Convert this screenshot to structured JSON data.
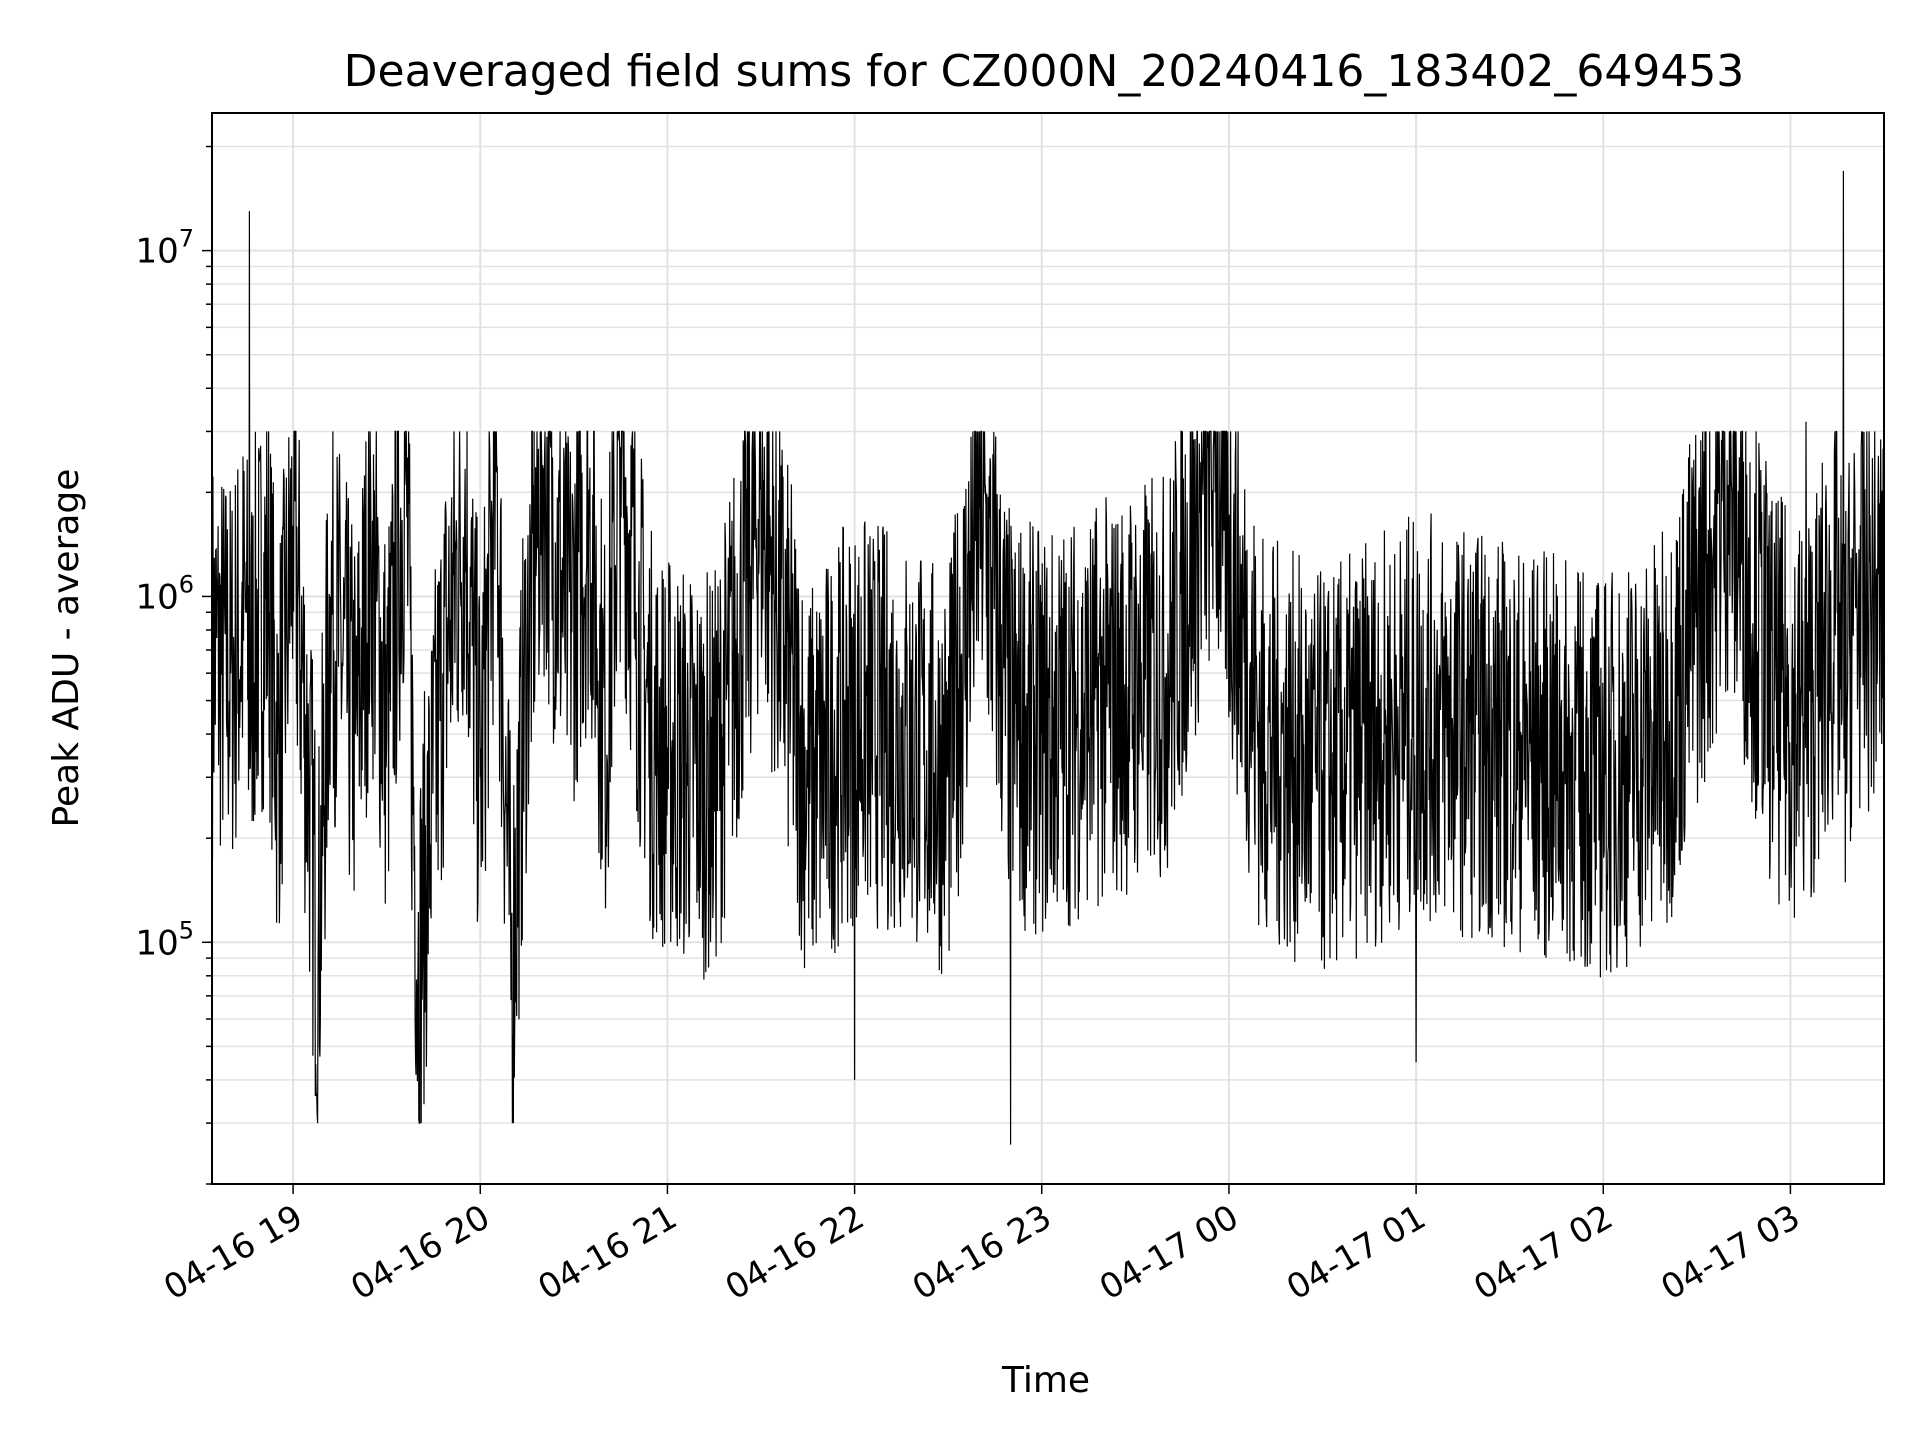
{
  "chart_data": {
    "type": "line",
    "title": "Deaveraged field sums for CZ000N_20240416_183402_649453",
    "xlabel": "Time",
    "ylabel": "Peak ADU - average",
    "yscale": "log",
    "ylim": [
      20000,
      25000000
    ],
    "xlim": [
      "2024-04-16 18:34:00",
      "2024-04-17 03:30:00"
    ],
    "x_ticks": [
      "04-16 19",
      "04-16 20",
      "04-16 21",
      "04-16 22",
      "04-16 23",
      "04-17 00",
      "04-17 01",
      "04-17 02",
      "04-17 03"
    ],
    "y_ticks": [
      {
        "base": "10",
        "exp": "5",
        "value": 100000
      },
      {
        "base": "10",
        "exp": "6",
        "value": 1000000
      },
      {
        "base": "10",
        "exp": "7",
        "value": 10000000
      }
    ],
    "grid": true,
    "line_color": "#000000",
    "series": [
      {
        "points": [
          [
            "2024-04-16 18:34",
            700000
          ],
          [
            "2024-04-16 18:40",
            600000
          ],
          [
            "2024-04-16 18:45",
            900000
          ],
          [
            "2024-04-16 18:46",
            13000000
          ],
          [
            "2024-04-16 18:47",
            700000
          ],
          [
            "2024-04-16 18:52",
            1100000
          ],
          [
            "2024-04-16 18:55",
            350000
          ],
          [
            "2024-04-16 18:58",
            800000
          ],
          [
            "2024-04-16 19:00",
            1600000
          ],
          [
            "2024-04-16 19:05",
            300000
          ],
          [
            "2024-04-16 19:08",
            90000
          ],
          [
            "2024-04-16 19:12",
            1000000
          ],
          [
            "2024-04-16 19:20",
            400000
          ],
          [
            "2024-04-16 19:25",
            1300000
          ],
          [
            "2024-04-16 19:30",
            400000
          ],
          [
            "2024-04-16 19:36",
            2400000
          ],
          [
            "2024-04-16 19:40",
            80000
          ],
          [
            "2024-04-16 19:48",
            600000
          ],
          [
            "2024-04-16 19:55",
            1700000
          ],
          [
            "2024-04-16 20:00",
            300000
          ],
          [
            "2024-04-16 20:05",
            2300000
          ],
          [
            "2024-04-16 20:10",
            80000
          ],
          [
            "2024-04-16 20:15",
            700000
          ],
          [
            "2024-04-16 20:20",
            2400000
          ],
          [
            "2024-04-16 20:28",
            800000
          ],
          [
            "2024-04-16 20:35",
            1700000
          ],
          [
            "2024-04-16 20:40",
            400000
          ],
          [
            "2024-04-16 20:45",
            2700000
          ],
          [
            "2024-04-16 20:50",
            900000
          ],
          [
            "2024-04-16 20:55",
            400000
          ],
          [
            "2024-04-16 21:00",
            350000
          ],
          [
            "2024-04-16 21:15",
            300000
          ],
          [
            "2024-04-16 21:30",
            1900000
          ],
          [
            "2024-04-16 21:45",
            280000
          ],
          [
            "2024-04-16 22:00",
            40000
          ],
          [
            "2024-04-16 22:15",
            400000
          ],
          [
            "2024-04-16 22:30",
            300000
          ],
          [
            "2024-04-16 22:40",
            1800000
          ],
          [
            "2024-04-16 22:50",
            26000
          ],
          [
            "2024-04-16 23:00",
            400000
          ],
          [
            "2024-04-16 23:20",
            500000
          ],
          [
            "2024-04-16 23:40",
            600000
          ],
          [
            "2024-04-16 23:55",
            2600000
          ],
          [
            "2024-04-17 00:10",
            400000
          ],
          [
            "2024-04-17 00:30",
            300000
          ],
          [
            "2024-04-17 00:50",
            400000
          ],
          [
            "2024-04-17 01:00",
            45000
          ],
          [
            "2024-04-17 01:20",
            400000
          ],
          [
            "2024-04-17 01:40",
            350000
          ],
          [
            "2024-04-17 02:00",
            300000
          ],
          [
            "2024-04-17 02:20",
            400000
          ],
          [
            "2024-04-17 02:40",
            2100000
          ],
          [
            "2024-04-17 02:55",
            500000
          ],
          [
            "2024-04-17 03:05",
            3200000
          ],
          [
            "2024-04-17 03:15",
            900000
          ],
          [
            "2024-04-17 03:17",
            17000000
          ],
          [
            "2024-04-17 03:20",
            900000
          ],
          [
            "2024-04-17 03:30",
            950000
          ]
        ]
      }
    ]
  }
}
